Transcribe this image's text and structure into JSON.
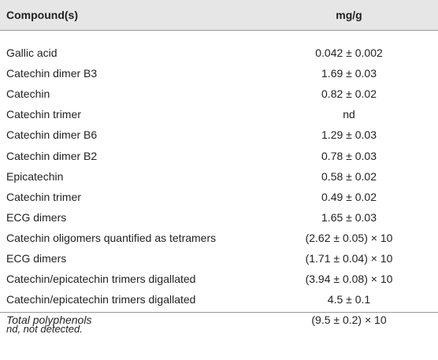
{
  "table": {
    "header": [
      "Compound(s)",
      "mg/g"
    ],
    "rows": [
      [
        "Gallic acid",
        "0.042 ± 0.002"
      ],
      [
        "Catechin dimer B3",
        "1.69 ± 0.03"
      ],
      [
        "Catechin",
        "0.82 ± 0.02"
      ],
      [
        "Catechin trimer",
        "nd"
      ],
      [
        "Catechin dimer B6",
        "1.29 ± 0.03"
      ],
      [
        "Catechin dimer B2",
        "0.78 ± 0.03"
      ],
      [
        "Epicatechin",
        "0.58 ± 0.02"
      ],
      [
        "Catechin trimer",
        "0.49 ± 0.02"
      ],
      [
        "ECG dimers",
        "1.65 ± 0.03"
      ],
      [
        "Catechin oligomers quantified as tetramers",
        "(2.62 ± 0.05) × 10"
      ],
      [
        "ECG dimers",
        "(1.71 ± 0.04) × 10"
      ],
      [
        "Catechin/epicatechin trimers digallated",
        "(3.94 ± 0.08) × 10"
      ],
      [
        "Catechin/epicatechin trimers digallated",
        "4.5 ± 0.1"
      ],
      [
        "Total polyphenols",
        "(9.5 ± 0.2) × 10"
      ]
    ]
  },
  "footnote": "nd, not detected."
}
